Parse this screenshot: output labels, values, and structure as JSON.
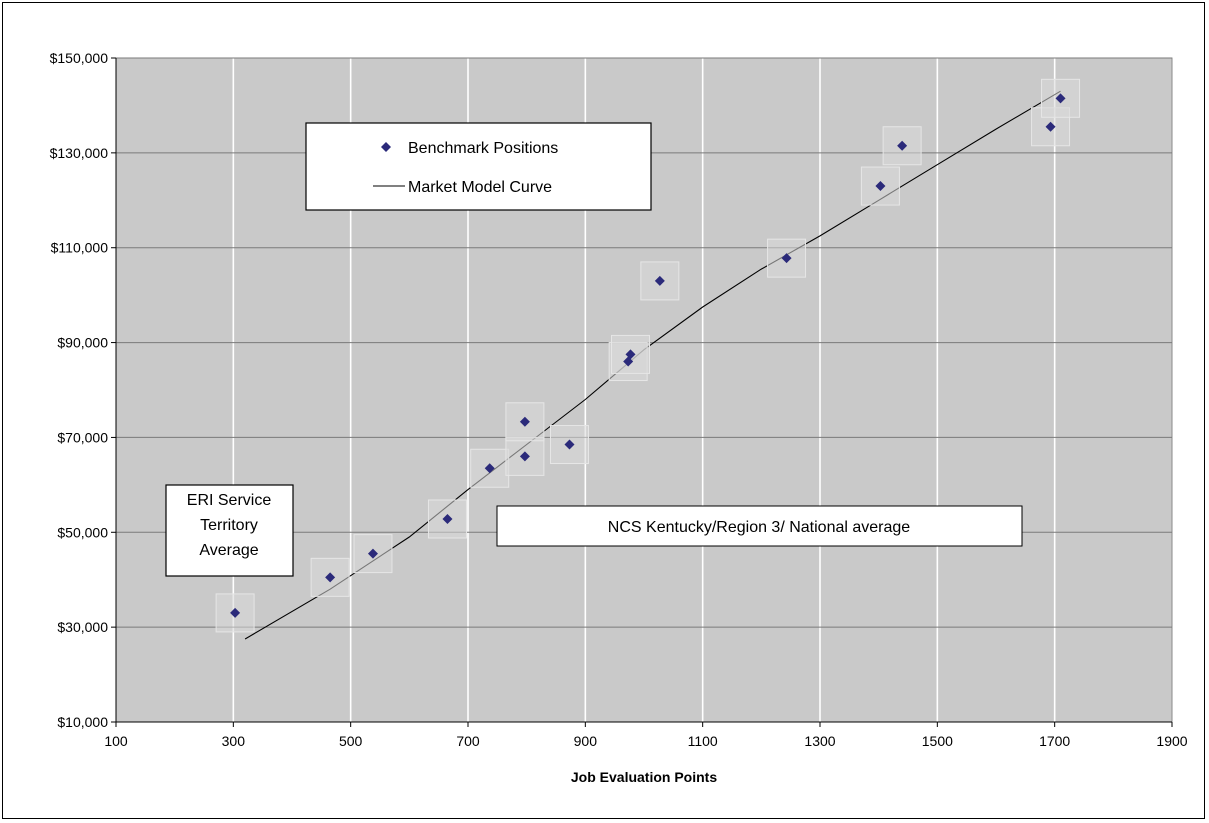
{
  "chart_data": {
    "type": "scatter",
    "title": "",
    "xlabel": "Job Evaluation Points",
    "ylabel": "",
    "xlim": [
      100,
      1900
    ],
    "ylim": [
      10000,
      150000
    ],
    "x_ticks": [
      100,
      300,
      500,
      700,
      900,
      1100,
      1300,
      1500,
      1700,
      1900
    ],
    "x_tick_labels": [
      "100",
      "300",
      "500",
      "700",
      "900",
      "1100",
      "1300",
      "1500",
      "1700",
      "1900"
    ],
    "y_ticks": [
      10000,
      30000,
      50000,
      70000,
      90000,
      110000,
      130000,
      150000
    ],
    "y_tick_labels": [
      "$10,000",
      "$30,000",
      "$50,000",
      "$70,000",
      "$90,000",
      "$110,000",
      "$130,000",
      "$150,000"
    ],
    "grid": true,
    "plot_background": "#c9c9c9",
    "legend": {
      "placement": "upper-left",
      "entries": [
        "Benchmark Positions",
        "Market Model Curve"
      ]
    },
    "series": [
      {
        "name": "Benchmark Positions",
        "kind": "scatter",
        "marker": "diamond",
        "color": "#2b2a7a",
        "points": [
          [
            303,
            33000
          ],
          [
            465,
            40500
          ],
          [
            538,
            45500
          ],
          [
            665,
            52800
          ],
          [
            737,
            63500
          ],
          [
            797,
            66000
          ],
          [
            797,
            73300
          ],
          [
            873,
            68500
          ],
          [
            973,
            86000
          ],
          [
            977,
            87500
          ],
          [
            1027,
            103000
          ],
          [
            1243,
            107800
          ],
          [
            1403,
            123000
          ],
          [
            1440,
            131500
          ],
          [
            1693,
            135500
          ],
          [
            1710,
            141500
          ]
        ]
      },
      {
        "name": "Market Model Curve",
        "kind": "line",
        "color": "#000000",
        "points": [
          [
            320,
            27500
          ],
          [
            465,
            38000
          ],
          [
            600,
            49000
          ],
          [
            700,
            59000
          ],
          [
            800,
            68500
          ],
          [
            900,
            78000
          ],
          [
            1000,
            88500
          ],
          [
            1100,
            97500
          ],
          [
            1200,
            105500
          ],
          [
            1300,
            112500
          ],
          [
            1400,
            120000
          ],
          [
            1500,
            127500
          ],
          [
            1600,
            135000
          ],
          [
            1710,
            143000
          ]
        ]
      }
    ],
    "annotations": [
      {
        "text": "ERI Service Territory Average",
        "lines": [
          "ERI Service",
          "Territory",
          "Average"
        ]
      },
      {
        "text": "NCS Kentucky/Region 3/ National average"
      }
    ]
  }
}
